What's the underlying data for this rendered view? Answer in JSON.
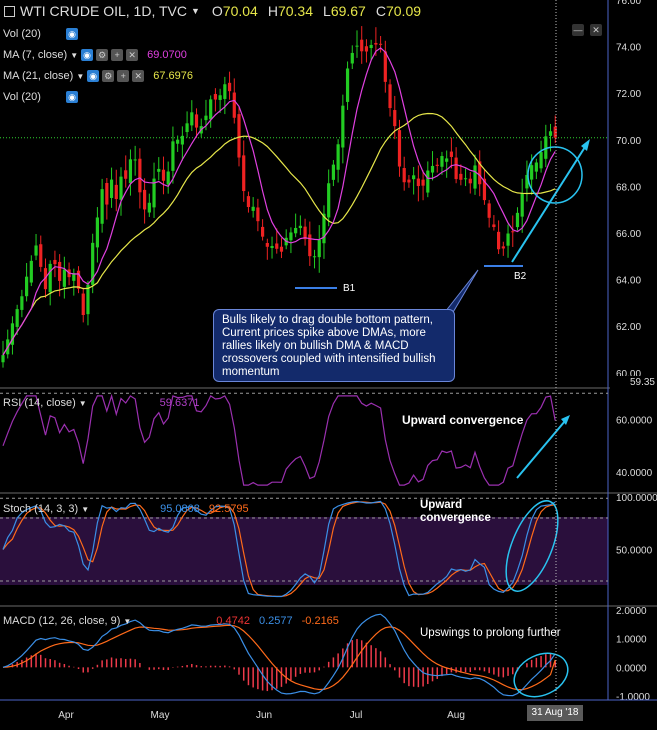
{
  "header": {
    "symbol": "WTI CRUDE OIL, 1D, TVC",
    "open_label": "O",
    "open": "70.04",
    "high_label": "H",
    "high": "70.34",
    "low_label": "L",
    "low": "69.67",
    "close_label": "C",
    "close": "70.09"
  },
  "indicators": [
    {
      "label": "Vol (20)",
      "value": "",
      "color": "#dddddd"
    },
    {
      "label": "MA (7, close)",
      "value": "69.0700",
      "color": "#e040e0"
    },
    {
      "label": "MA (21, close)",
      "value": "67.6976",
      "color": "#e6e64a"
    },
    {
      "label": "Vol (20)",
      "value": "",
      "color": "#dddddd"
    }
  ],
  "rsi_legend": {
    "label": "RSI (14, close)",
    "value": "59.6371"
  },
  "stoch_legend": {
    "label": "Stoch (14, 3, 3)",
    "k": "95.0808",
    "d": "92.5795"
  },
  "macd_legend": {
    "label": "MACD (12, 26, close, 9)",
    "macd": "0.4742",
    "signal": "0.2577",
    "hist": "-0.2165"
  },
  "annotations": {
    "note": "Bulls likely to drag double bottom pattern, Current prices spike above DMAs, more rallies likely on bullish DMA & MACD crossovers coupled with intensified bullish momentum",
    "b1": "B1",
    "b2": "B2",
    "rsi": "Upward convergence",
    "stoch": "Upward convergence",
    "macd": "Upswings to prolong further"
  },
  "date_tag": "31 Aug '18",
  "price_tag": "59.35",
  "colors": {
    "up": "#22cc22",
    "down": "#ee2222",
    "ma7": "#e040e0",
    "ma21": "#e6e64a",
    "rsi": "#9b30b0",
    "stoch_k": "#3b8fe6",
    "stoch_d": "#ff6a1a",
    "macd": "#3b8fe6",
    "signal": "#ff6a1a",
    "arrow": "#29c3f0",
    "guide": "#9a9a9a",
    "axis": "#4b63c8"
  },
  "chart_data": [
    {
      "type": "candlestick",
      "x_ticks": [
        "Apr",
        "May",
        "Jun",
        "Jul",
        "Aug"
      ],
      "y_ticks": [
        "60.00",
        "62.00",
        "64.00",
        "66.00",
        "68.00",
        "70.00",
        "72.00",
        "74.00",
        "76.00"
      ],
      "ylim": [
        59.35,
        76.0
      ],
      "last_close": 70.09,
      "close_path": [
        {
          "x": 0,
          "y": 60.4
        },
        {
          "x": 5,
          "y": 61.0
        },
        {
          "x": 10,
          "y": 61.8
        },
        {
          "x": 16,
          "y": 62.6
        },
        {
          "x": 22,
          "y": 63.3
        },
        {
          "x": 27,
          "y": 64.2
        },
        {
          "x": 32,
          "y": 64.9
        },
        {
          "x": 37,
          "y": 65.6
        },
        {
          "x": 42,
          "y": 64.2
        },
        {
          "x": 46,
          "y": 63.5
        },
        {
          "x": 51,
          "y": 64.9
        },
        {
          "x": 56,
          "y": 64.6
        },
        {
          "x": 61,
          "y": 63.7
        },
        {
          "x": 66,
          "y": 64.8
        },
        {
          "x": 70,
          "y": 63.9
        },
        {
          "x": 75,
          "y": 64.4
        },
        {
          "x": 79,
          "y": 63.5
        },
        {
          "x": 84,
          "y": 62.3
        },
        {
          "x": 88,
          "y": 63.8
        },
        {
          "x": 93,
          "y": 65.7
        },
        {
          "x": 98,
          "y": 66.8
        },
        {
          "x": 102,
          "y": 67.9
        },
        {
          "x": 107,
          "y": 67.2
        },
        {
          "x": 112,
          "y": 68.4
        },
        {
          "x": 117,
          "y": 67.3
        },
        {
          "x": 122,
          "y": 68.7
        },
        {
          "x": 127,
          "y": 68.2
        },
        {
          "x": 132,
          "y": 69.6
        },
        {
          "x": 137,
          "y": 68.9
        },
        {
          "x": 141,
          "y": 67.3
        },
        {
          "x": 146,
          "y": 66.9
        },
        {
          "x": 151,
          "y": 67.5
        },
        {
          "x": 155,
          "y": 68.6
        },
        {
          "x": 160,
          "y": 68.8
        },
        {
          "x": 165,
          "y": 68.0
        },
        {
          "x": 170,
          "y": 69.0
        },
        {
          "x": 175,
          "y": 70.6
        },
        {
          "x": 179,
          "y": 69.7
        },
        {
          "x": 184,
          "y": 70.4
        },
        {
          "x": 189,
          "y": 70.9
        },
        {
          "x": 193,
          "y": 71.3
        },
        {
          "x": 198,
          "y": 70.2
        },
        {
          "x": 203,
          "y": 70.8
        },
        {
          "x": 208,
          "y": 71.2
        },
        {
          "x": 212,
          "y": 72.0
        },
        {
          "x": 217,
          "y": 71.6
        },
        {
          "x": 222,
          "y": 72.1
        },
        {
          "x": 227,
          "y": 72.6
        },
        {
          "x": 231,
          "y": 71.8
        },
        {
          "x": 236,
          "y": 70.5
        },
        {
          "x": 241,
          "y": 68.4
        },
        {
          "x": 246,
          "y": 67.3
        },
        {
          "x": 250,
          "y": 67.0
        },
        {
          "x": 255,
          "y": 67.2
        },
        {
          "x": 260,
          "y": 66.0
        },
        {
          "x": 265,
          "y": 65.7
        },
        {
          "x": 269,
          "y": 65.2
        },
        {
          "x": 274,
          "y": 65.6
        },
        {
          "x": 279,
          "y": 65.1
        },
        {
          "x": 284,
          "y": 65.3
        },
        {
          "x": 288,
          "y": 66.2
        },
        {
          "x": 293,
          "y": 65.9
        },
        {
          "x": 298,
          "y": 66.5
        },
        {
          "x": 303,
          "y": 66.1
        },
        {
          "x": 307,
          "y": 65.4
        },
        {
          "x": 312,
          "y": 64.7
        },
        {
          "x": 317,
          "y": 65.3
        },
        {
          "x": 322,
          "y": 66.2
        },
        {
          "x": 327,
          "y": 67.8
        },
        {
          "x": 331,
          "y": 68.6
        },
        {
          "x": 336,
          "y": 69.3
        },
        {
          "x": 341,
          "y": 70.5
        },
        {
          "x": 345,
          "y": 72.6
        },
        {
          "x": 350,
          "y": 73.5
        },
        {
          "x": 355,
          "y": 74.0
        },
        {
          "x": 360,
          "y": 74.1
        },
        {
          "x": 364,
          "y": 73.4
        },
        {
          "x": 369,
          "y": 74.2
        },
        {
          "x": 374,
          "y": 73.9
        },
        {
          "x": 379,
          "y": 74.4
        },
        {
          "x": 383,
          "y": 73.6
        },
        {
          "x": 388,
          "y": 71.2
        },
        {
          "x": 393,
          "y": 71.6
        },
        {
          "x": 397,
          "y": 69.3
        },
        {
          "x": 402,
          "y": 68.4
        },
        {
          "x": 407,
          "y": 67.9
        },
        {
          "x": 412,
          "y": 68.6
        },
        {
          "x": 416,
          "y": 68.3
        },
        {
          "x": 421,
          "y": 67.7
        },
        {
          "x": 426,
          "y": 68.5
        },
        {
          "x": 431,
          "y": 69.0
        },
        {
          "x": 436,
          "y": 68.6
        },
        {
          "x": 440,
          "y": 69.5
        },
        {
          "x": 445,
          "y": 69.0
        },
        {
          "x": 450,
          "y": 69.6
        },
        {
          "x": 455,
          "y": 68.4
        },
        {
          "x": 459,
          "y": 68.1
        },
        {
          "x": 464,
          "y": 68.6
        },
        {
          "x": 469,
          "y": 67.8
        },
        {
          "x": 474,
          "y": 69.1
        },
        {
          "x": 478,
          "y": 68.3
        },
        {
          "x": 483,
          "y": 67.7
        },
        {
          "x": 488,
          "y": 66.7
        },
        {
          "x": 493,
          "y": 66.5
        },
        {
          "x": 497,
          "y": 65.4
        },
        {
          "x": 502,
          "y": 65.1
        },
        {
          "x": 507,
          "y": 66.0
        },
        {
          "x": 512,
          "y": 65.9
        },
        {
          "x": 516,
          "y": 66.6
        },
        {
          "x": 521,
          "y": 67.5
        },
        {
          "x": 526,
          "y": 68.4
        },
        {
          "x": 531,
          "y": 68.9
        },
        {
          "x": 536,
          "y": 69.0
        },
        {
          "x": 540,
          "y": 69.3
        },
        {
          "x": 545,
          "y": 70.1
        },
        {
          "x": 550,
          "y": 70.4
        },
        {
          "x": 555,
          "y": 70.09
        }
      ]
    },
    {
      "type": "line",
      "name": "RSI (14, close)",
      "y_ticks": [
        "40.0000",
        "60.0000"
      ],
      "ylim": [
        32,
        72
      ],
      "reference_lines": [
        30,
        70
      ],
      "last": 59.6371
    },
    {
      "type": "line",
      "name": "Stoch (14, 3, 3)",
      "y_ticks": [
        "50.0000",
        "100.0000"
      ],
      "ylim": [
        0,
        100
      ],
      "reference_lines": [
        20,
        80
      ],
      "last_k": 95.0808,
      "last_d": 92.5795
    },
    {
      "type": "line",
      "name": "MACD (12, 26, close, 9)",
      "y_ticks": [
        "-1.0000",
        "0.0000",
        "1.0000",
        "2.0000"
      ],
      "ylim": [
        -1.0,
        2.0
      ],
      "last_macd": 0.4742,
      "last_signal": 0.2577,
      "last_hist": -0.2165
    }
  ]
}
